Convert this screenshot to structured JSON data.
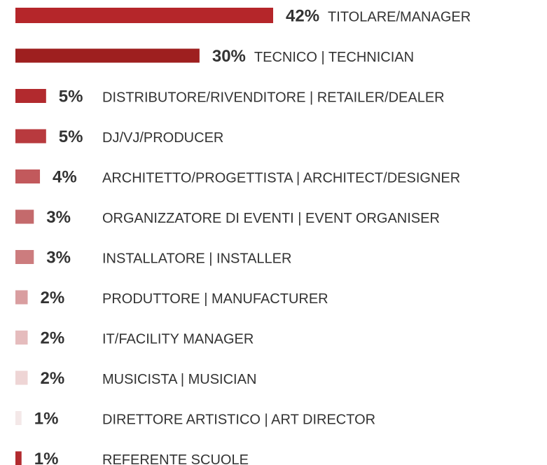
{
  "chart_data": {
    "type": "bar",
    "orientation": "horizontal",
    "categories": [
      "TITOLARE/MANAGER",
      "TECNICO | TECHNICIAN",
      "DISTRIBUTORE/RIVENDITORE | RETAILER/DEALER",
      "DJ/VJ/PRODUCER",
      "ARCHITETTO/PROGETTISTA | ARCHITECT/DESIGNER",
      "ORGANIZZATORE DI EVENTI | EVENT ORGANISER",
      "INSTALLATORE | INSTALLER",
      "PRODUTTORE | MANUFACTURER",
      "IT/FACILITY MANAGER",
      "MUSICISTA | MUSICIAN",
      "DIRETTORE ARTISTICO | ART DIRECTOR",
      "REFERENTE SCUOLE"
    ],
    "values": [
      42,
      30,
      5,
      5,
      4,
      3,
      3,
      2,
      2,
      2,
      1,
      1
    ],
    "value_labels": [
      "42%",
      "30%",
      "5%",
      "5%",
      "4%",
      "3%",
      "3%",
      "2%",
      "2%",
      "2%",
      "1%",
      "1%"
    ],
    "colors": [
      "#b5262a",
      "#9e1f1f",
      "#b22a2e",
      "#b83a3e",
      "#c2595c",
      "#c46a6c",
      "#cc7c7e",
      "#d99ea0",
      "#e5bcbd",
      "#eed5d5",
      "#f4e8e8",
      "#b22a2e"
    ]
  }
}
